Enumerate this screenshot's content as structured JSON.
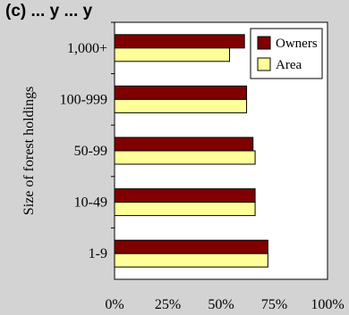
{
  "heading": "(c) ... y ... y",
  "chart_data": {
    "type": "bar",
    "orientation": "horizontal",
    "title": "",
    "ylabel": "Size of forest holdings",
    "xlabel": "",
    "categories": [
      "1,000+",
      "100-999",
      "50-99",
      "10-49",
      "1-9"
    ],
    "series": [
      {
        "name": "Owners",
        "color": "#800000",
        "values": [
          61,
          62,
          65,
          66,
          72
        ]
      },
      {
        "name": "Area",
        "color": "#ffff99",
        "values": [
          54,
          62,
          66,
          66,
          72
        ]
      }
    ],
    "xlim": [
      0,
      100
    ],
    "xticks": [
      "0%",
      "25%",
      "50%",
      "75%",
      "100%"
    ],
    "legend": "top-right",
    "grid": false,
    "plot_background": "#ffffff"
  }
}
